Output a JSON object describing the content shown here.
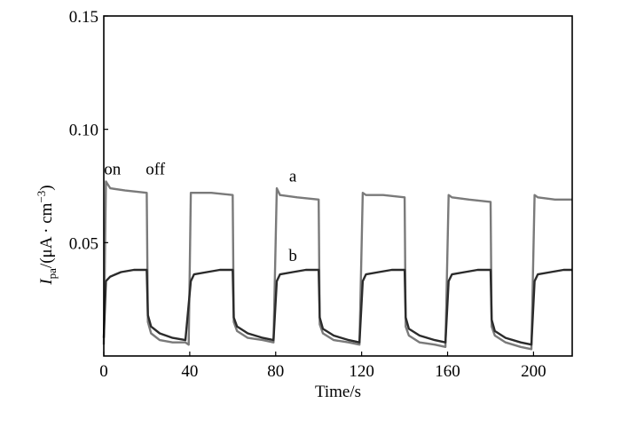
{
  "chart_data": {
    "type": "line",
    "xlabel": "Time/s",
    "ylabel": {
      "symbol": "I",
      "subscript": "pa",
      "unit_open": "/(μA · cm",
      "exponent": "−3",
      "unit_close": ")"
    },
    "xlim": [
      0,
      218
    ],
    "ylim": [
      0.0,
      0.15
    ],
    "x_ticks": [
      0,
      40,
      80,
      120,
      160,
      200
    ],
    "y_ticks": [
      0.05,
      0.1,
      0.15
    ],
    "y_tick_labels": [
      "0.05",
      "0.10",
      "0.15"
    ],
    "annotations": [
      {
        "text": "on",
        "x": 4,
        "y": 0.08
      },
      {
        "text": "off",
        "x": 24,
        "y": 0.08
      },
      {
        "text": "a",
        "x": 88,
        "y": 0.077
      },
      {
        "text": "b",
        "x": 88,
        "y": 0.042
      }
    ],
    "series": [
      {
        "name": "a",
        "color": "#7a7a7a",
        "x": [
          0,
          1,
          3,
          10,
          20,
          20.5,
          22,
          26,
          32,
          38,
          39.5,
          40.5,
          42,
          50,
          60,
          60.5,
          62,
          67,
          74,
          79,
          80.5,
          82,
          90,
          100,
          100.5,
          102,
          107,
          114,
          119,
          120.5,
          122,
          130,
          140,
          140.5,
          142,
          147,
          154,
          159,
          160.5,
          162,
          170,
          180,
          180.5,
          182,
          187,
          194,
          199,
          200.5,
          202,
          210,
          218
        ],
        "y": [
          0.005,
          0.077,
          0.074,
          0.073,
          0.072,
          0.015,
          0.01,
          0.007,
          0.006,
          0.006,
          0.005,
          0.072,
          0.072,
          0.072,
          0.071,
          0.015,
          0.011,
          0.008,
          0.007,
          0.006,
          0.074,
          0.071,
          0.07,
          0.069,
          0.014,
          0.01,
          0.007,
          0.006,
          0.005,
          0.072,
          0.071,
          0.071,
          0.07,
          0.013,
          0.009,
          0.006,
          0.005,
          0.004,
          0.071,
          0.07,
          0.069,
          0.068,
          0.013,
          0.009,
          0.006,
          0.004,
          0.003,
          0.071,
          0.07,
          0.069,
          0.069
        ]
      },
      {
        "name": "b",
        "color": "#2b2b2b",
        "x": [
          0,
          1,
          3,
          8,
          14,
          20,
          20.5,
          22,
          26,
          32,
          38,
          40.5,
          42,
          48,
          54,
          60,
          60.5,
          62,
          67,
          74,
          79,
          80.5,
          82,
          88,
          94,
          100,
          100.5,
          102,
          107,
          114,
          119,
          120.5,
          122,
          128,
          134,
          140,
          140.5,
          142,
          147,
          154,
          159,
          160.5,
          162,
          168,
          174,
          180,
          180.5,
          182,
          187,
          194,
          199,
          200.5,
          202,
          208,
          214,
          218
        ],
        "y": [
          0.008,
          0.033,
          0.035,
          0.037,
          0.038,
          0.038,
          0.018,
          0.013,
          0.01,
          0.008,
          0.007,
          0.033,
          0.036,
          0.037,
          0.038,
          0.038,
          0.017,
          0.013,
          0.01,
          0.008,
          0.007,
          0.033,
          0.036,
          0.037,
          0.038,
          0.038,
          0.017,
          0.012,
          0.009,
          0.007,
          0.006,
          0.033,
          0.036,
          0.037,
          0.038,
          0.038,
          0.017,
          0.012,
          0.009,
          0.007,
          0.006,
          0.033,
          0.036,
          0.037,
          0.038,
          0.038,
          0.016,
          0.011,
          0.008,
          0.006,
          0.005,
          0.033,
          0.036,
          0.037,
          0.038,
          0.038
        ]
      }
    ]
  }
}
